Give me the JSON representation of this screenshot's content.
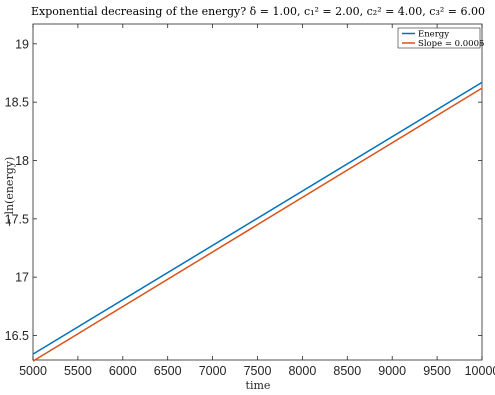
{
  "chart_data": {
    "type": "line",
    "title": "Exponential decreasing of the energy?  δ = 1.00, c₁² = 2.00, c₂² = 4.00, c₃² = 6.00",
    "xlabel": "time",
    "ylabel": "− ln(energy)",
    "xlim": [
      5000,
      10000
    ],
    "ylim": [
      16.29,
      19.17
    ],
    "x_ticks": [
      5000,
      5500,
      6000,
      6500,
      7000,
      7500,
      8000,
      8500,
      9000,
      9500,
      10000
    ],
    "y_ticks": [
      16.5,
      17,
      17.5,
      18,
      18.5,
      19
    ],
    "y_tick_labels": [
      "16.5",
      "17",
      "17.5",
      "18",
      "18.5",
      "19"
    ],
    "grid": false,
    "legend_position": "top-right",
    "series": [
      {
        "name": "Energy",
        "color": "#0072BD",
        "x": [
          5000,
          10000
        ],
        "y": [
          16.34,
          18.67
        ]
      },
      {
        "name": "Slope = 0.0005",
        "color": "#D95319",
        "x": [
          5000,
          10000
        ],
        "y": [
          16.28,
          18.62
        ]
      }
    ]
  }
}
